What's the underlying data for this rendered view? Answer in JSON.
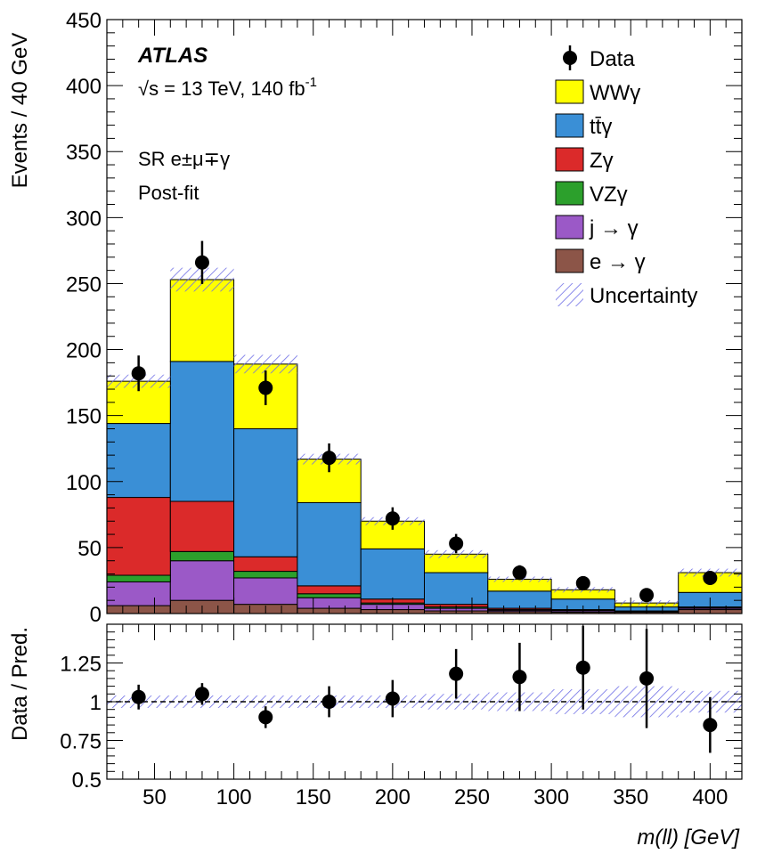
{
  "chart_data": {
    "type": "stacked_histogram_with_ratio",
    "experiment": "ATLAS",
    "energy_label": "√s = 13 TeV, 140 fb",
    "energy_label_superscript": "-1",
    "region_label": "SR e±μ∓γ",
    "fit_label": "Post-fit",
    "xlabel": "m(ll) [GeV]",
    "ylabel": "Events / 40 GeV",
    "ratio_ylabel": "Data / Pred.",
    "xlim": [
      20,
      420
    ],
    "ylim": [
      0,
      450
    ],
    "ratio_ylim": [
      0.5,
      1.5
    ],
    "x_ticks": [
      "50",
      "100",
      "150",
      "200",
      "250",
      "300",
      "350",
      "400"
    ],
    "y_ticks": [
      "0",
      "50",
      "100",
      "150",
      "200",
      "250",
      "300",
      "350",
      "400",
      "450"
    ],
    "ratio_y_ticks": [
      "0.5",
      "0.75",
      "1",
      "1.25"
    ],
    "bin_edges": [
      20,
      60,
      100,
      140,
      180,
      220,
      260,
      300,
      340,
      380,
      420
    ],
    "colors": {
      "WWg": "#ffff00",
      "ttg": "#3a8fd6",
      "Zg": "#db2a2a",
      "VZg": "#2ca02c",
      "jg": "#9b59c7",
      "eg": "#8c5548",
      "uncertainty": "#6f6fe6"
    },
    "series": [
      {
        "key": "eg",
        "name": "e → γ",
        "values": [
          6,
          10,
          7,
          4,
          3,
          2,
          1.5,
          1,
          1,
          3
        ]
      },
      {
        "key": "jg",
        "name": "j → γ",
        "values": [
          18,
          30,
          20,
          8,
          4,
          2,
          1,
          1,
          0.5,
          1
        ]
      },
      {
        "key": "VZg",
        "name": "VZγ",
        "values": [
          5,
          7,
          5,
          3,
          1,
          1,
          0.5,
          0.5,
          0.3,
          0.5
        ]
      },
      {
        "key": "Zg",
        "name": "Zγ",
        "values": [
          59,
          38,
          11,
          6,
          3,
          2,
          1,
          0.5,
          0.2,
          0.5
        ]
      },
      {
        "key": "ttg",
        "name": "tt̄γ",
        "values": [
          56,
          106,
          97,
          63,
          38,
          24,
          13,
          8,
          3,
          11
        ]
      },
      {
        "key": "WWg",
        "name": "WWγ",
        "values": [
          32,
          62,
          49,
          33,
          21,
          14,
          9,
          7,
          3,
          15
        ]
      }
    ],
    "uncertainty_band": [
      5,
      9,
      7,
      4,
      3,
      3,
      2,
      2,
      2,
      3
    ],
    "data": {
      "x": [
        40,
        80,
        120,
        160,
        200,
        240,
        280,
        320,
        360,
        400
      ],
      "values": [
        182,
        266,
        171,
        118,
        72,
        53,
        31,
        23,
        14,
        27
      ],
      "errors": [
        13.5,
        16.3,
        13.1,
        10.9,
        8.5,
        7.3,
        5.6,
        4.8,
        3.7,
        5.2
      ]
    },
    "ratio": {
      "x": [
        40,
        80,
        120,
        160,
        200,
        240,
        280,
        320,
        360,
        400
      ],
      "values": [
        1.03,
        1.05,
        0.9,
        1.0,
        1.02,
        1.18,
        1.16,
        1.22,
        1.15,
        0.85
      ],
      "errors": [
        0.08,
        0.07,
        0.07,
        0.1,
        0.12,
        0.16,
        0.22,
        0.27,
        0.32,
        0.18
      ],
      "band": [
        0.04,
        0.04,
        0.04,
        0.04,
        0.04,
        0.05,
        0.06,
        0.08,
        0.1,
        0.07
      ]
    },
    "legend": [
      {
        "key": "data",
        "label": "Data"
      },
      {
        "key": "WWg",
        "label": "WWγ"
      },
      {
        "key": "ttg",
        "label": "tt̄γ"
      },
      {
        "key": "Zg",
        "label": "Zγ"
      },
      {
        "key": "VZg",
        "label": "VZγ"
      },
      {
        "key": "jg",
        "label": "j → γ"
      },
      {
        "key": "eg",
        "label": "e → γ"
      },
      {
        "key": "uncertainty",
        "label": "Uncertainty"
      }
    ],
    "legend_position": "top-right"
  }
}
